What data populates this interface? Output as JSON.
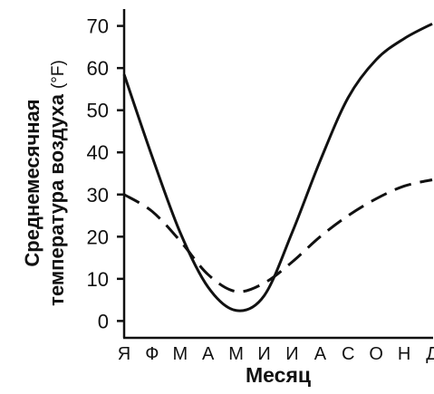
{
  "chart_data": {
    "type": "line",
    "title": "",
    "xlabel": "Месяц",
    "ylabel": {
      "line1": "Среднемесячная",
      "line2_main": "температура воздуха",
      "line2_unit": "(°F)"
    },
    "categories": [
      "Я",
      "Ф",
      "М",
      "А",
      "М",
      "И",
      "И",
      "А",
      "С",
      "О",
      "Н",
      "Д"
    ],
    "yticks": [
      0,
      10,
      20,
      30,
      40,
      50,
      60,
      70
    ],
    "ylim": [
      -4,
      74
    ],
    "grid": false,
    "legend": "none",
    "series": [
      {
        "style": "solid",
        "color": "#111111",
        "values": [
          58.5,
          39,
          21,
          8,
          2.5,
          6,
          21,
          38,
          53,
          62,
          67,
          70.5
        ]
      },
      {
        "style": "dashed",
        "color": "#111111",
        "values": [
          30,
          26,
          19,
          11,
          7,
          9,
          14,
          20,
          25,
          29,
          32,
          33.5
        ]
      }
    ]
  }
}
